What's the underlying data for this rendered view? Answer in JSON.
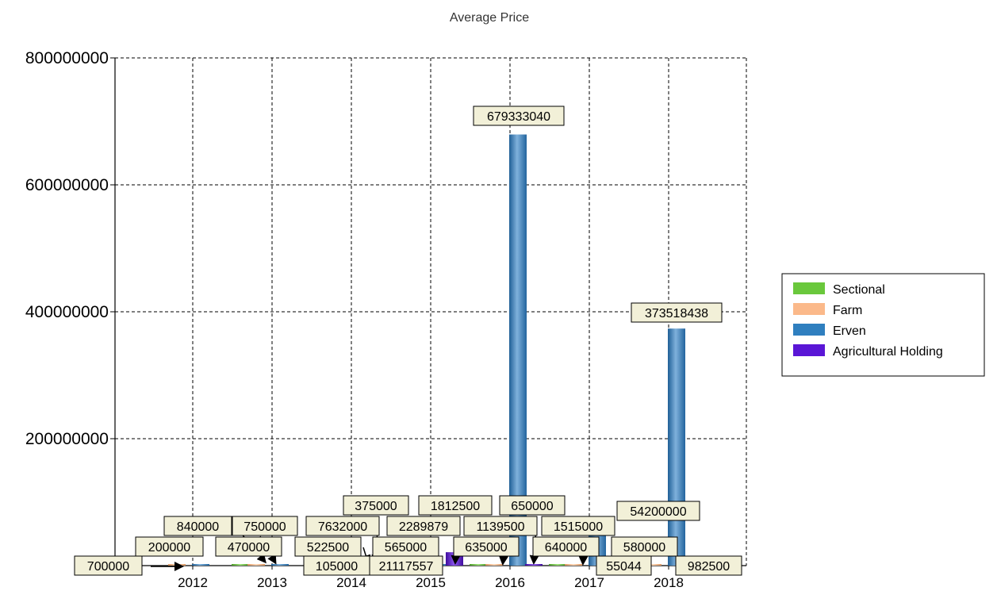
{
  "chart_data": {
    "type": "bar",
    "title": "Average Price",
    "categories": [
      "2012",
      "2013",
      "2014",
      "2015",
      "2016",
      "2017",
      "2018"
    ],
    "ylim": [
      0,
      800000000
    ],
    "yticks": [
      "800000000",
      "600000000",
      "400000000",
      "200000000"
    ],
    "grid": true,
    "legend_position": "right",
    "series": [
      {
        "name": "Sectional",
        "color": "#6ac83c",
        "values": [
          null,
          470000,
          522500,
          565000,
          635000,
          640000,
          580000
        ]
      },
      {
        "name": "Farm",
        "color": "#fbb98a",
        "values": [
          200000,
          840000,
          7632000,
          2289879,
          1139500,
          1515000,
          55044
        ]
      },
      {
        "name": "Erven",
        "color": "#2f7fbf",
        "values": [
          700000,
          750000,
          375000,
          1812500,
          679333040,
          54200000,
          373518438
        ]
      },
      {
        "name": "Agricultural Holding",
        "color": "#5a16d6",
        "values": [
          null,
          null,
          105000,
          21117557,
          650000,
          null,
          982500
        ]
      }
    ],
    "data_labels": [
      {
        "text": "700000"
      },
      {
        "text": "200000"
      },
      {
        "text": "840000"
      },
      {
        "text": "750000"
      },
      {
        "text": "470000"
      },
      {
        "text": "7632000"
      },
      {
        "text": "375000"
      },
      {
        "text": "522500"
      },
      {
        "text": "105000"
      },
      {
        "text": "2289879"
      },
      {
        "text": "565000"
      },
      {
        "text": "21117557"
      },
      {
        "text": "1812500"
      },
      {
        "text": "1139500"
      },
      {
        "text": "635000"
      },
      {
        "text": "650000"
      },
      {
        "text": "679333040"
      },
      {
        "text": "1515000"
      },
      {
        "text": "640000"
      },
      {
        "text": "54200000"
      },
      {
        "text": "55044"
      },
      {
        "text": "580000"
      },
      {
        "text": "373518438"
      },
      {
        "text": "982500"
      }
    ]
  }
}
